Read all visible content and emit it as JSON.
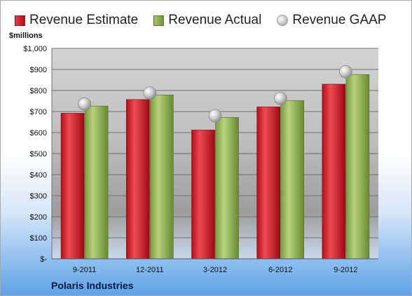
{
  "legend": {
    "items": [
      {
        "label": "Revenue Estimate",
        "color": "#c8121d"
      },
      {
        "label": "Revenue Actual",
        "color": "#8aac4f"
      },
      {
        "label": "Revenue GAAP",
        "color": "#c0c0c0"
      }
    ]
  },
  "unit_label": "$millions",
  "company": "Polaris Industries",
  "chart_data": {
    "type": "bar",
    "categories": [
      "9-2011",
      "12-2011",
      "3-2012",
      "6-2012",
      "9-2012"
    ],
    "series": [
      {
        "name": "Revenue Estimate",
        "values": [
          692,
          757,
          612,
          722,
          830
        ]
      },
      {
        "name": "Revenue Actual",
        "values": [
          726,
          779,
          672,
          752,
          876
        ]
      },
      {
        "name": "Revenue GAAP",
        "values": [
          736,
          788,
          680,
          762,
          889
        ],
        "style": "marker"
      }
    ],
    "yticks": [
      "$-",
      "$100",
      "$200",
      "$300",
      "$400",
      "$500",
      "$600",
      "$700",
      "$800",
      "$900",
      "$1,000"
    ],
    "ylim": [
      0,
      1000
    ],
    "grid": true,
    "legend_position": "top"
  }
}
